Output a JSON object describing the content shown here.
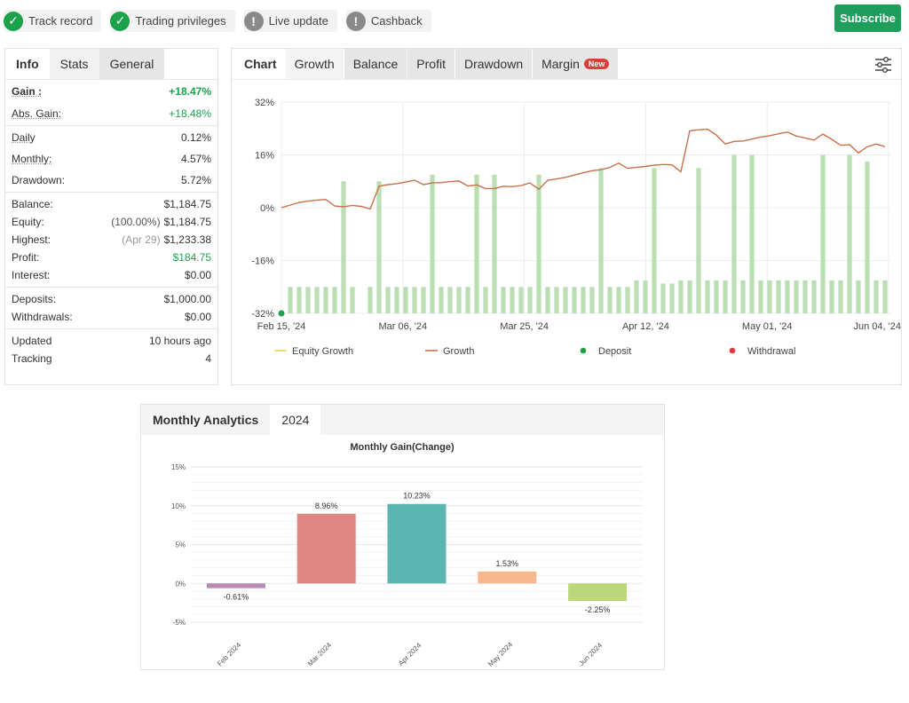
{
  "badges": [
    {
      "label": "Track record",
      "icon": "check-icon"
    },
    {
      "label": "Trading privileges",
      "icon": "check-icon"
    },
    {
      "label": "Live update",
      "icon": "info-icon"
    },
    {
      "label": "Cashback",
      "icon": "info-icon"
    }
  ],
  "subscribe_label": "Subscribe",
  "left_tabs": [
    "Info",
    "Stats",
    "General"
  ],
  "stats": {
    "gain": {
      "label": "Gain :",
      "value": "+18.47%"
    },
    "abs_gain": {
      "label": "Abs. Gain:",
      "value": "+18.48%"
    },
    "daily": {
      "label": "Daily",
      "value": "0.12%"
    },
    "monthly": {
      "label": "Monthly:",
      "value": "4.57%"
    },
    "drawdown": {
      "label": "Drawdown:",
      "value": "5.72%"
    },
    "balance": {
      "label": "Balance:",
      "value": "$1,184.75"
    },
    "equity": {
      "label": "Equity:",
      "pct": "(100.00%)",
      "value": "$1,184.75"
    },
    "highest": {
      "label": "Highest:",
      "date": "(Apr 29)",
      "value": "$1,233.38"
    },
    "profit": {
      "label": "Profit:",
      "value": "$184.75"
    },
    "interest": {
      "label": "Interest:",
      "value": "$0.00"
    },
    "deposits": {
      "label": "Deposits:",
      "value": "$1,000.00"
    },
    "withdrawals": {
      "label": "Withdrawals:",
      "value": "$0.00"
    },
    "updated": {
      "label": "Updated",
      "value": "10 hours ago"
    },
    "tracking": {
      "label": "Tracking",
      "value": "4"
    }
  },
  "chart_tabs": [
    "Chart",
    "Growth",
    "Balance",
    "Profit",
    "Drawdown",
    "Margin"
  ],
  "new_badge": "New",
  "colors": {
    "green": "#1aa34a",
    "growth_line": "#c8714a",
    "equity_line": "#f2d35c",
    "bar": "#b9dfb3",
    "deposit": "#1aa34a",
    "withdrawal": "#e03b3b"
  },
  "chart_data": [
    {
      "type": "line",
      "y_ticks": [
        "32%",
        "16%",
        "0%",
        "-16%",
        "-32%"
      ],
      "ylim": [
        -32,
        32
      ],
      "x_ticks": [
        "Feb 15, '24",
        "Mar 06, '24",
        "Mar 25, '24",
        "Apr 12, '24",
        "May 01, '24",
        "Jun 04, '24"
      ],
      "legend": [
        "Equity Growth",
        "Growth",
        "Deposit",
        "Withdrawal"
      ],
      "series": [
        {
          "name": "Growth",
          "x": [
            0,
            1,
            2,
            3,
            4,
            5,
            6,
            7,
            8,
            9,
            10,
            11,
            12,
            13,
            14,
            15,
            16,
            17,
            18,
            19,
            20,
            21,
            22,
            23,
            24,
            25,
            26,
            27,
            28,
            29,
            30,
            31,
            32,
            33,
            34,
            35,
            36,
            37,
            38,
            39,
            40,
            41,
            42,
            43,
            44,
            45,
            46,
            47,
            48,
            49,
            50,
            51,
            52,
            53,
            54,
            55,
            56,
            57,
            58,
            59,
            60,
            61,
            62,
            63,
            64,
            65,
            66,
            67,
            68
          ],
          "y": [
            0,
            0.8,
            1.6,
            2,
            2.3,
            2.5,
            0.5,
            0.3,
            0.7,
            0.4,
            -0.4,
            6.5,
            7,
            7.3,
            7.8,
            8.3,
            7,
            7.5,
            7.6,
            7.9,
            8.1,
            6.6,
            6.9,
            5.8,
            5.8,
            6.5,
            6.4,
            6.7,
            7.5,
            5.6,
            8.3,
            8.7,
            9.2,
            9.9,
            10.6,
            11.2,
            11.5,
            12.2,
            13.5,
            11.9,
            12.2,
            12.5,
            12.9,
            13.1,
            13,
            10.9,
            23.3,
            23.6,
            23.8,
            22,
            19.3,
            20.1,
            20.2,
            20.8,
            21.4,
            21.8,
            22.4,
            22.9,
            21.7,
            21.1,
            20.5,
            22.3,
            20.7,
            18.9,
            19.1,
            16.6,
            18.5,
            19.3,
            18.5
          ]
        },
        {
          "name": "Deposit",
          "x": [
            0
          ],
          "y": [
            -32
          ]
        }
      ],
      "bars": [
        {
          "x": 1,
          "y": -24
        },
        {
          "x": 2,
          "y": -24
        },
        {
          "x": 3,
          "y": -24
        },
        {
          "x": 4,
          "y": -24
        },
        {
          "x": 5,
          "y": -24
        },
        {
          "x": 6,
          "y": -24
        },
        {
          "x": 7,
          "y": 8
        },
        {
          "x": 8,
          "y": -24
        },
        {
          "x": 10,
          "y": -24
        },
        {
          "x": 11,
          "y": 8
        },
        {
          "x": 12,
          "y": -24
        },
        {
          "x": 13,
          "y": -24
        },
        {
          "x": 14,
          "y": -24
        },
        {
          "x": 15,
          "y": -24
        },
        {
          "x": 16,
          "y": -24
        },
        {
          "x": 17,
          "y": 10
        },
        {
          "x": 18,
          "y": -24
        },
        {
          "x": 19,
          "y": -24
        },
        {
          "x": 20,
          "y": -24
        },
        {
          "x": 21,
          "y": -24
        },
        {
          "x": 22,
          "y": 10
        },
        {
          "x": 23,
          "y": -24
        },
        {
          "x": 24,
          "y": 10
        },
        {
          "x": 25,
          "y": -24
        },
        {
          "x": 26,
          "y": -24
        },
        {
          "x": 27,
          "y": -24
        },
        {
          "x": 28,
          "y": -24
        },
        {
          "x": 29,
          "y": 10
        },
        {
          "x": 30,
          "y": -24
        },
        {
          "x": 31,
          "y": -24
        },
        {
          "x": 32,
          "y": -24
        },
        {
          "x": 33,
          "y": -24
        },
        {
          "x": 34,
          "y": -24
        },
        {
          "x": 35,
          "y": -24
        },
        {
          "x": 36,
          "y": 12
        },
        {
          "x": 37,
          "y": -24
        },
        {
          "x": 38,
          "y": -24
        },
        {
          "x": 39,
          "y": -24
        },
        {
          "x": 40,
          "y": -22
        },
        {
          "x": 41,
          "y": -22
        },
        {
          "x": 42,
          "y": 12
        },
        {
          "x": 43,
          "y": -23
        },
        {
          "x": 44,
          "y": -23
        },
        {
          "x": 45,
          "y": -22
        },
        {
          "x": 46,
          "y": -22
        },
        {
          "x": 47,
          "y": 12
        },
        {
          "x": 48,
          "y": -22
        },
        {
          "x": 49,
          "y": -22
        },
        {
          "x": 50,
          "y": -22
        },
        {
          "x": 51,
          "y": 16
        },
        {
          "x": 52,
          "y": -22
        },
        {
          "x": 53,
          "y": 16
        },
        {
          "x": 54,
          "y": -22
        },
        {
          "x": 55,
          "y": -22
        },
        {
          "x": 56,
          "y": -22
        },
        {
          "x": 57,
          "y": -22
        },
        {
          "x": 58,
          "y": -22
        },
        {
          "x": 59,
          "y": -22
        },
        {
          "x": 60,
          "y": -22
        },
        {
          "x": 61,
          "y": 16
        },
        {
          "x": 62,
          "y": -22
        },
        {
          "x": 63,
          "y": -22
        },
        {
          "x": 64,
          "y": 16
        },
        {
          "x": 65,
          "y": -22
        },
        {
          "x": 66,
          "y": 14
        },
        {
          "x": 67,
          "y": -22
        },
        {
          "x": 68,
          "y": -22
        }
      ],
      "xlim": [
        0,
        68.6
      ]
    },
    {
      "type": "bar",
      "title": "Monthly Gain(Change)",
      "categories": [
        "Feb 2024",
        "Mar 2024",
        "Apr 2024",
        "May 2024",
        "Jun 2024"
      ],
      "values": [
        -0.61,
        8.96,
        10.23,
        1.53,
        -2.25
      ],
      "value_labels": [
        "-0.61%",
        "8.96%",
        "10.23%",
        "1.53%",
        "-2.25%"
      ],
      "bar_colors": [
        "#b88bb5",
        "#e08683",
        "#5bb5b3",
        "#f8b78e",
        "#bcd67a"
      ],
      "y_ticks": [
        "15%",
        "10%",
        "5%",
        "0%",
        "-5%"
      ],
      "ylim": [
        -5,
        15
      ]
    }
  ],
  "monthly_tabs": [
    "Monthly Analytics",
    "2024"
  ]
}
